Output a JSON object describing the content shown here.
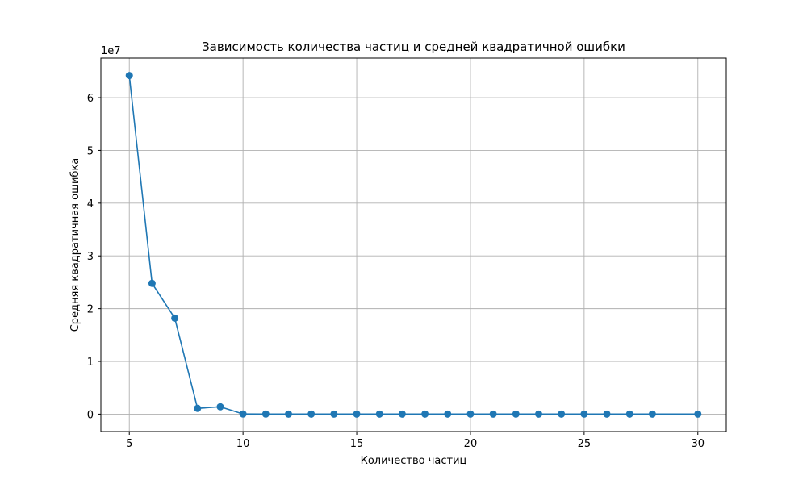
{
  "chart_data": {
    "type": "line",
    "title": "Зависимость количества частиц и средней квадратичной ошибки",
    "xlabel": "Количество частиц",
    "ylabel": "Средняя квадратичная ошибка",
    "y_offset_label": "1e7",
    "xlim": [
      3.75,
      31.25
    ],
    "ylim": [
      -3300000,
      67500000
    ],
    "xticks": [
      5,
      10,
      15,
      20,
      25,
      30
    ],
    "yticks": [
      0,
      10000000,
      20000000,
      30000000,
      40000000,
      50000000,
      60000000
    ],
    "ytick_labels": [
      "0",
      "1",
      "2",
      "3",
      "4",
      "5",
      "6"
    ],
    "xtick_labels": [
      "5",
      "10",
      "15",
      "20",
      "25",
      "30"
    ],
    "grid": true,
    "series": [
      {
        "color": "#1f77b4",
        "marker": "circle",
        "x": [
          5,
          6,
          7,
          8,
          9,
          10,
          11,
          12,
          13,
          14,
          15,
          16,
          17,
          18,
          19,
          20,
          21,
          22,
          23,
          24,
          25,
          26,
          27,
          28,
          30
        ],
        "values": [
          64200000,
          24800000,
          18200000,
          1100000,
          1400000,
          30000,
          20000,
          15000,
          10000,
          10000,
          10000,
          10000,
          10000,
          10000,
          10000,
          10000,
          10000,
          10000,
          10000,
          10000,
          10000,
          10000,
          10000,
          10000,
          10000
        ]
      }
    ]
  }
}
